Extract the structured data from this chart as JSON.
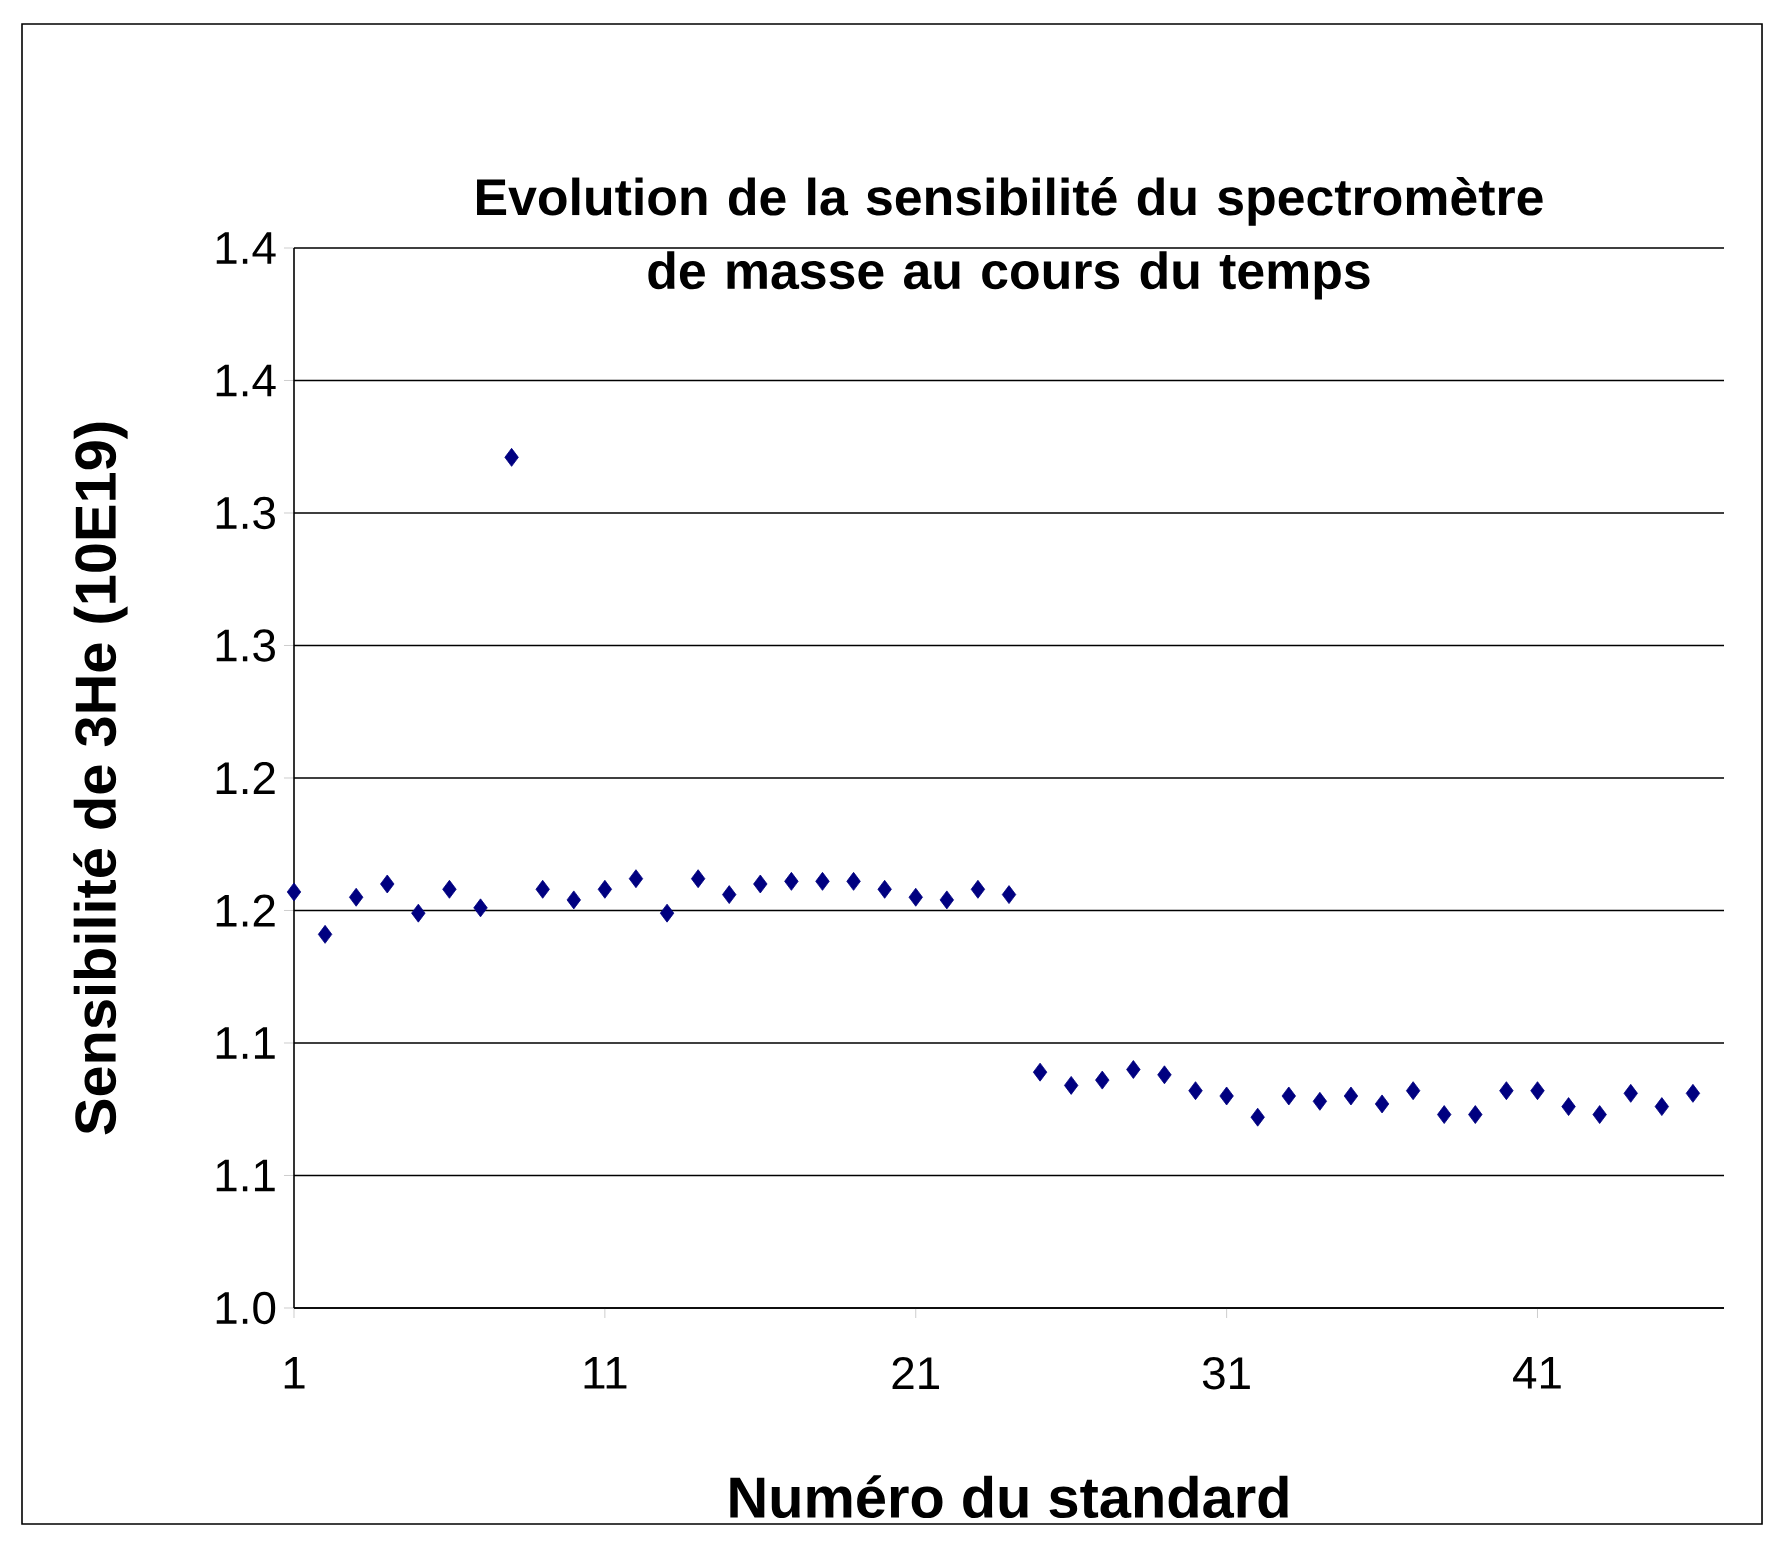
{
  "chart_data": {
    "type": "scatter",
    "title": "Evolution de la sensibilité du spectromètre de masse au cours du temps",
    "xlabel": "Numéro du standard",
    "ylabel": "Sensibilité de 3He (10E19)",
    "x": [
      1,
      2,
      3,
      4,
      5,
      6,
      7,
      8,
      9,
      10,
      11,
      12,
      13,
      14,
      15,
      16,
      17,
      18,
      19,
      20,
      21,
      22,
      23,
      24,
      25,
      26,
      27,
      28,
      29,
      30,
      31,
      32,
      33,
      34,
      35,
      36,
      37,
      38,
      39,
      40,
      41,
      42,
      43,
      44,
      45,
      46
    ],
    "values": [
      1.157,
      1.141,
      1.155,
      1.16,
      1.149,
      1.158,
      1.151,
      1.321,
      1.158,
      1.154,
      1.158,
      1.162,
      1.149,
      1.162,
      1.156,
      1.16,
      1.161,
      1.161,
      1.161,
      1.158,
      1.155,
      1.154,
      1.158,
      1.156,
      1.089,
      1.084,
      1.086,
      1.09,
      1.088,
      1.082,
      1.08,
      1.072,
      1.08,
      1.078,
      1.08,
      1.077,
      1.082,
      1.073,
      1.073,
      1.082,
      1.082,
      1.076,
      1.073,
      1.081,
      1.076,
      1.081
    ],
    "color": "#000080",
    "marker": "diamond",
    "grid": "y",
    "xlim": [
      1,
      47
    ],
    "xticks": [
      1,
      11,
      21,
      31,
      41
    ],
    "ylim": [
      1.0,
      1.4
    ],
    "yticks": [
      {
        "value": 1.0,
        "label": "1.0"
      },
      {
        "value": 1.05,
        "label": "1.1"
      },
      {
        "value": 1.1,
        "label": "1.1"
      },
      {
        "value": 1.15,
        "label": "1.2"
      },
      {
        "value": 1.2,
        "label": "1.2"
      },
      {
        "value": 1.25,
        "label": "1.3"
      },
      {
        "value": 1.3,
        "label": "1.3"
      },
      {
        "value": 1.35,
        "label": "1.4"
      },
      {
        "value": 1.4,
        "label": "1.4"
      }
    ]
  }
}
